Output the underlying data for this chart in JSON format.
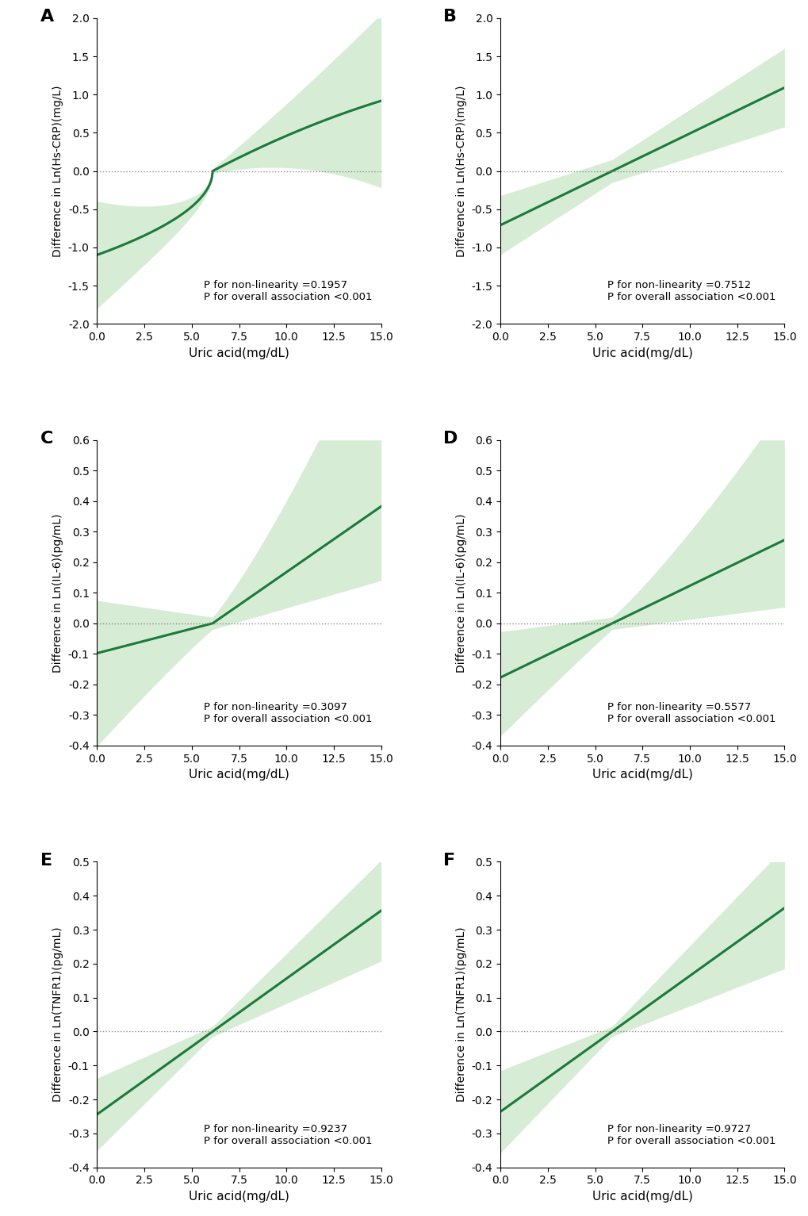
{
  "panels": [
    {
      "label": "A",
      "ylabel": "Difference in Ln(Hs-CRP)(mg/L)",
      "xlabel": "Uric acid(mg/dL)",
      "xlim": [
        0,
        15
      ],
      "ylim": [
        -2.0,
        2.0
      ],
      "yticks": [
        -2.0,
        -1.5,
        -1.0,
        -0.5,
        0.0,
        0.5,
        1.0,
        1.5,
        2.0
      ],
      "xticks": [
        0.0,
        2.5,
        5.0,
        7.5,
        10.0,
        12.5,
        15.0
      ],
      "p_nonlinearity": "0.1957",
      "p_overall": "<0.001",
      "ref_x": 6.1,
      "curve_type": "crp_low"
    },
    {
      "label": "B",
      "ylabel": "Difference in Ln(Hs-CRP)(mg/L)",
      "xlabel": "Uric acid(mg/dL)",
      "xlim": [
        0,
        15
      ],
      "ylim": [
        -2.0,
        2.0
      ],
      "yticks": [
        -2.0,
        -1.5,
        -1.0,
        -0.5,
        0.0,
        0.5,
        1.0,
        1.5,
        2.0
      ],
      "xticks": [
        0.0,
        2.5,
        5.0,
        7.5,
        10.0,
        12.5,
        15.0
      ],
      "p_nonlinearity": "0.7512",
      "p_overall": "<0.001",
      "ref_x": 5.9,
      "curve_type": "crp_high"
    },
    {
      "label": "C",
      "ylabel": "Difference in Ln(IL-6)(pg/mL)",
      "xlabel": "Uric acid(mg/dL)",
      "xlim": [
        0,
        15
      ],
      "ylim": [
        -0.4,
        0.6
      ],
      "yticks": [
        -0.4,
        -0.3,
        -0.2,
        -0.1,
        0.0,
        0.1,
        0.2,
        0.3,
        0.4,
        0.5,
        0.6
      ],
      "xticks": [
        0.0,
        2.5,
        5.0,
        7.5,
        10.0,
        12.5,
        15.0
      ],
      "p_nonlinearity": "0.3097",
      "p_overall": "<0.001",
      "ref_x": 6.1,
      "curve_type": "il6_low"
    },
    {
      "label": "D",
      "ylabel": "Difference in Ln(IL-6)(pg/mL)",
      "xlabel": "Uric acid(mg/dL)",
      "xlim": [
        0,
        15
      ],
      "ylim": [
        -0.4,
        0.6
      ],
      "yticks": [
        -0.4,
        -0.3,
        -0.2,
        -0.1,
        0.0,
        0.1,
        0.2,
        0.3,
        0.4,
        0.5,
        0.6
      ],
      "xticks": [
        0.0,
        2.5,
        5.0,
        7.5,
        10.0,
        12.5,
        15.0
      ],
      "p_nonlinearity": "0.5577",
      "p_overall": "<0.001",
      "ref_x": 5.9,
      "curve_type": "il6_high"
    },
    {
      "label": "E",
      "ylabel": "Difference in Ln(TNFR1)(pg/mL)",
      "xlabel": "Uric acid(mg/dL)",
      "xlim": [
        0,
        15
      ],
      "ylim": [
        -0.4,
        0.5
      ],
      "yticks": [
        -0.4,
        -0.3,
        -0.2,
        -0.1,
        0.0,
        0.1,
        0.2,
        0.3,
        0.4,
        0.5
      ],
      "xticks": [
        0.0,
        2.5,
        5.0,
        7.5,
        10.0,
        12.5,
        15.0
      ],
      "p_nonlinearity": "0.9237",
      "p_overall": "<0.001",
      "ref_x": 6.1,
      "curve_type": "tnfr1_low"
    },
    {
      "label": "F",
      "ylabel": "Difference in Ln(TNFR1)(pg/mL)",
      "xlabel": "Uric acid(mg/dL)",
      "xlim": [
        0,
        15
      ],
      "ylim": [
        -0.4,
        0.5
      ],
      "yticks": [
        -0.4,
        -0.3,
        -0.2,
        -0.1,
        0.0,
        0.1,
        0.2,
        0.3,
        0.4,
        0.5
      ],
      "xticks": [
        0.0,
        2.5,
        5.0,
        7.5,
        10.0,
        12.5,
        15.0
      ],
      "p_nonlinearity": "0.9727",
      "p_overall": "<0.001",
      "ref_x": 5.9,
      "curve_type": "tnfr1_high"
    }
  ],
  "line_color": "#1a7a3a",
  "fill_color": "#a8d5a2",
  "fill_alpha": 0.45,
  "background_color": "#ffffff",
  "label_fontsize": 16,
  "tick_fontsize": 10,
  "ylabel_fontsize": 10,
  "xlabel_fontsize": 11,
  "annotation_fontsize": 9.5
}
